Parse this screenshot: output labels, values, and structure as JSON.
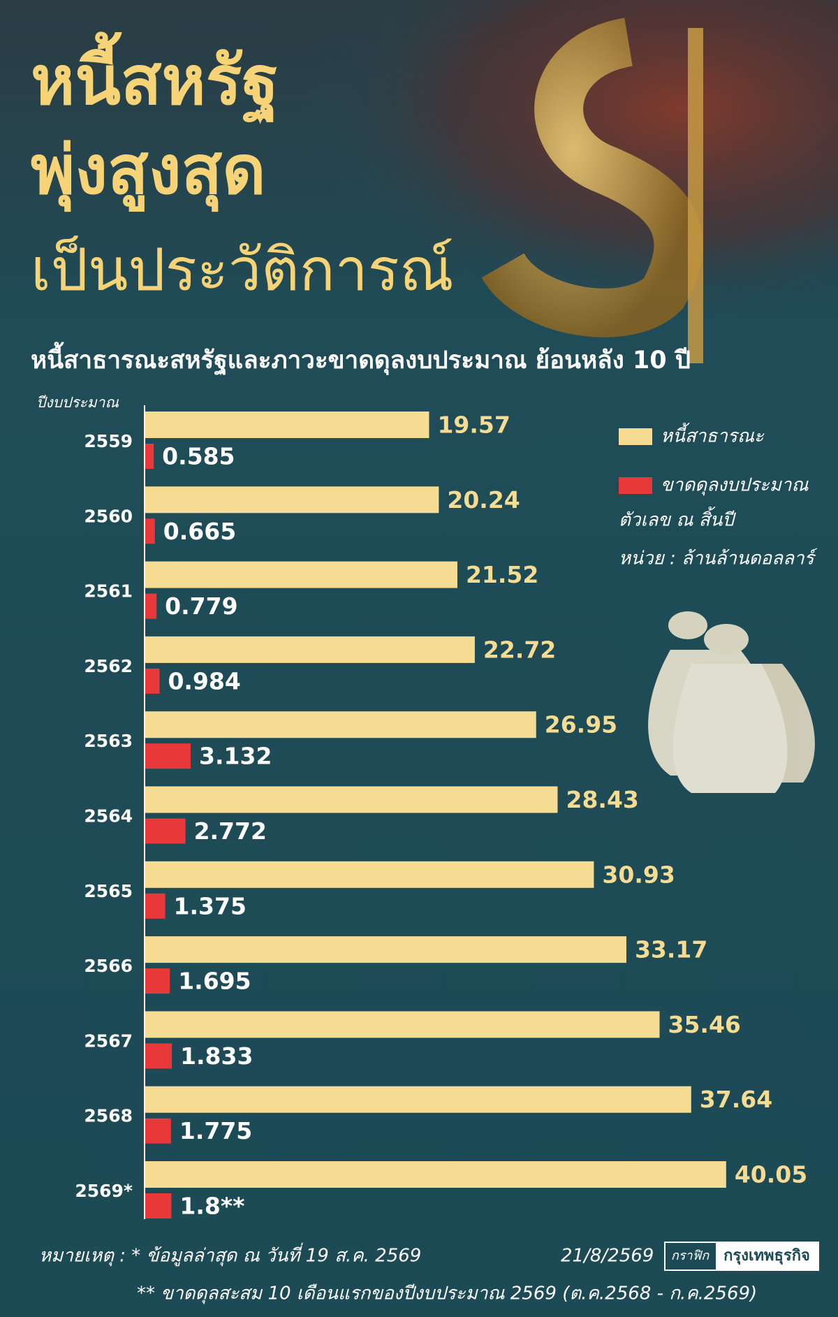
{
  "chart_data": {
    "type": "bar",
    "orientation": "horizontal",
    "title": [
      "หนี้สหรัฐ",
      "พุ่งสูงสุด",
      "เป็นประวัติการณ์"
    ],
    "subtitle": "หนี้สาธารณะสหรัฐและภาวะขาดดุลงบประมาณ ย้อนหลัง 10 ปี",
    "category_label": "ปีงบประมาณ",
    "categories": [
      "2559",
      "2560",
      "2561",
      "2562",
      "2563",
      "2564",
      "2565",
      "2566",
      "2567",
      "2568",
      "2569*"
    ],
    "series": [
      {
        "name": "หนี้สาธารณะ",
        "color": "#f6dc92",
        "values": [
          19.57,
          20.24,
          21.52,
          22.72,
          26.95,
          28.43,
          30.93,
          33.17,
          35.46,
          37.64,
          40.05
        ]
      },
      {
        "name": "ขาดดุลงบประมาณ",
        "color": "#e8383a",
        "values": [
          0.585,
          0.665,
          0.779,
          0.984,
          3.132,
          2.772,
          1.375,
          1.695,
          1.833,
          1.775,
          1.8
        ],
        "value_labels": [
          "0.585",
          "0.665",
          "0.779",
          "0.984",
          "3.132",
          "2.772",
          "1.375",
          "1.695",
          "1.833",
          "1.775",
          "1.8**"
        ]
      }
    ],
    "notes": [
      "ตัวเลข ณ สิ้นปี",
      "หน่วย : ล้านล้านดอลลาร์"
    ],
    "footnotes": [
      "หมายเหตุ : * ข้อมูลล่าสุด ณ วันที่ 19 ส.ค. 2569",
      "** ขาดดุลสะสม 10 เดือนแรกของปีงบประมาณ 2569 (ต.ค.2568 - ก.ค.2569)"
    ],
    "date": "21/8/2569",
    "source": [
      "กราฟิก",
      "กรุงเทพธุรกิจ"
    ]
  }
}
